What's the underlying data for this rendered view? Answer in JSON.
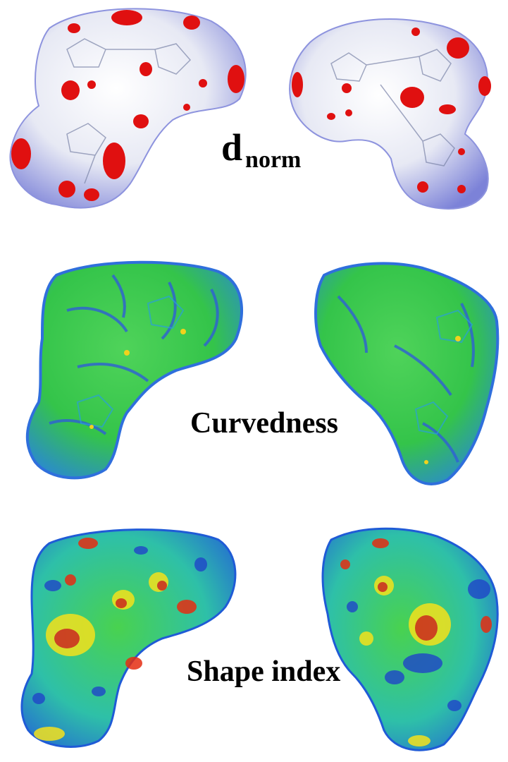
{
  "panels": [
    {
      "id": "dnorm",
      "label_main": "d",
      "label_sub": "norm"
    },
    {
      "id": "curvedness",
      "label": "Curvedness"
    },
    {
      "id": "shape_index",
      "label": "Shape index"
    }
  ],
  "colors": {
    "dnorm_surface": "#eef0f6",
    "dnorm_blue": "#5b63d8",
    "dnorm_red": "#e01010",
    "curv_green": "#36c43a",
    "curv_blue": "#2e6fe0",
    "curv_cyan": "#33d6d0",
    "shape_blue": "#1f5bd6",
    "shape_cyan": "#28c8d8",
    "shape_green": "#3fcf45",
    "shape_yellow": "#f4e21c",
    "shape_red": "#e52d12"
  }
}
